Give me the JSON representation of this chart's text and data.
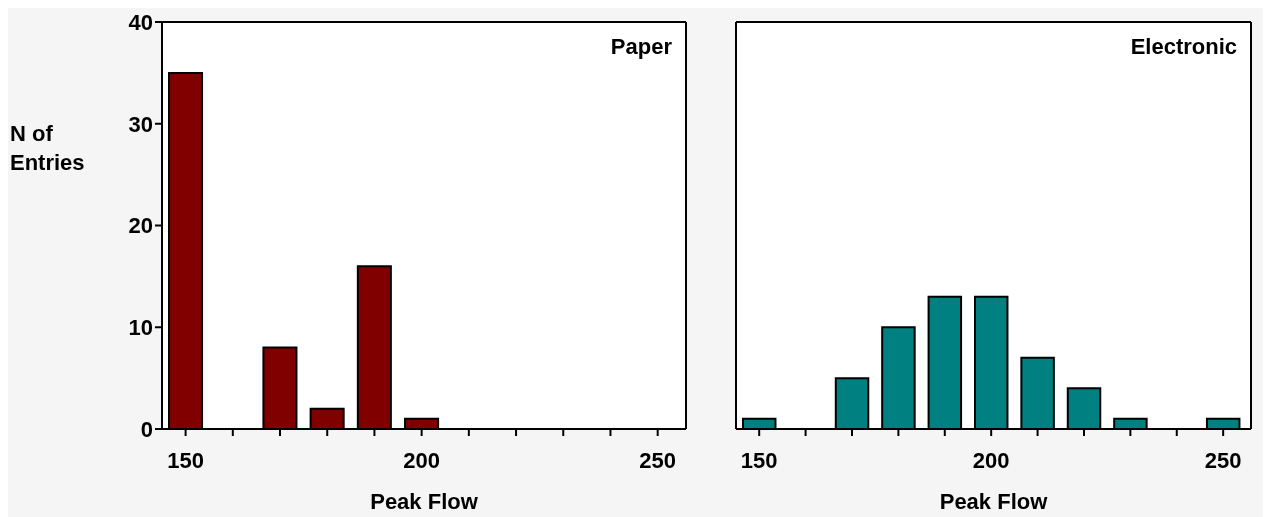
{
  "chart_data": [
    {
      "type": "bar",
      "title": "Paper",
      "xlabel": "Peak Flow",
      "ylabel": "N of Entries",
      "x": [
        150,
        170,
        180,
        190,
        200
      ],
      "values": [
        35,
        8,
        2,
        16,
        1
      ],
      "color": "#800000",
      "xlim": [
        145,
        256
      ],
      "xticks": [
        150,
        {
          "value": 160,
          "label": null
        },
        {
          "value": 170,
          "label": null
        },
        {
          "value": 180,
          "label": null
        },
        {
          "value": 190,
          "label": null
        },
        200,
        {
          "value": 210,
          "label": null
        },
        {
          "value": 220,
          "label": null
        },
        {
          "value": 230,
          "label": null
        },
        {
          "value": 240,
          "label": null
        },
        250
      ],
      "ylim": [
        0,
        40
      ],
      "yticks": [
        0,
        10,
        20,
        30,
        40
      ]
    },
    {
      "type": "bar",
      "title": "Electronic",
      "xlabel": "Peak Flow",
      "x": [
        150,
        170,
        180,
        190,
        200,
        210,
        220,
        230,
        250
      ],
      "values": [
        1,
        5,
        10,
        13,
        13,
        7,
        4,
        1,
        1
      ],
      "color": "#008080",
      "xlim": [
        145,
        256
      ],
      "xticks": [
        150,
        {
          "value": 160,
          "label": null
        },
        {
          "value": 170,
          "label": null
        },
        {
          "value": 180,
          "label": null
        },
        {
          "value": 190,
          "label": null
        },
        200,
        {
          "value": 210,
          "label": null
        },
        {
          "value": 220,
          "label": null
        },
        {
          "value": 230,
          "label": null
        },
        {
          "value": 240,
          "label": null
        },
        250
      ],
      "ylim": [
        0,
        40
      ],
      "yticks": [
        0,
        10,
        20,
        30,
        40
      ],
      "tick_labels": "x"
    }
  ]
}
